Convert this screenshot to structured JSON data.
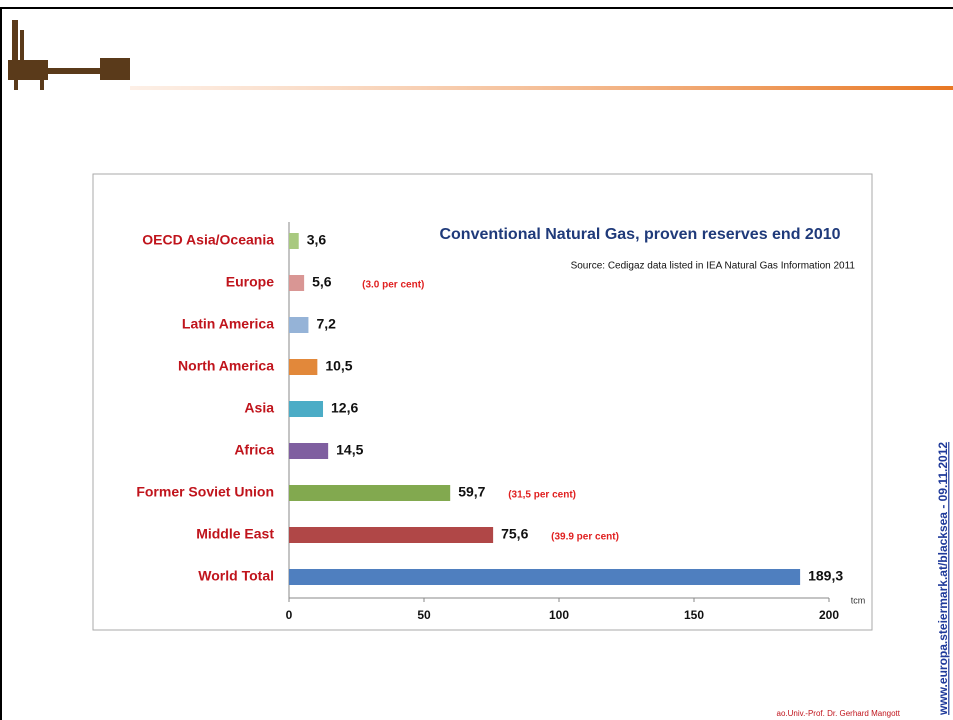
{
  "chart_data": {
    "type": "bar",
    "orientation": "horizontal",
    "title": "Conventional Natural Gas, proven reserves end 2010",
    "subtitle": "Source: Cedigaz data  listed in IEA Natural Gas Information 2011",
    "categories": [
      "OECD Asia/Oceania",
      "Europe",
      "Latin America",
      "North America",
      "Asia",
      "Africa",
      "Former Soviet Union",
      "Middle East",
      "World Total"
    ],
    "values": [
      3.6,
      5.6,
      7.2,
      10.5,
      12.6,
      14.5,
      59.7,
      75.6,
      189.3
    ],
    "value_labels": [
      "3,6",
      "5,6",
      "7,2",
      "10,5",
      "12,6",
      "14,5",
      "59,7",
      "75,6",
      "189,3"
    ],
    "value_notes": [
      null,
      "(3.0 per cent)",
      null,
      null,
      null,
      null,
      "(31,5 per cent)",
      "(39.9 per cent)",
      null
    ],
    "colors": [
      "#a8c97f",
      "#d99694",
      "#95b3d7",
      "#e2883a",
      "#4bacc6",
      "#7f5fa0",
      "#82a94f",
      "#b04747",
      "#4f7fbf"
    ],
    "xlabel": "tcm",
    "xlim": [
      0,
      200
    ],
    "xticks": [
      0,
      50,
      100,
      150,
      200
    ]
  },
  "slide": {
    "footer": "ao.Univ.-Prof. Dr. Gerhard Mangott",
    "side_note": "www.europa.steiermark.at/blacksea - 09.11.2012"
  }
}
